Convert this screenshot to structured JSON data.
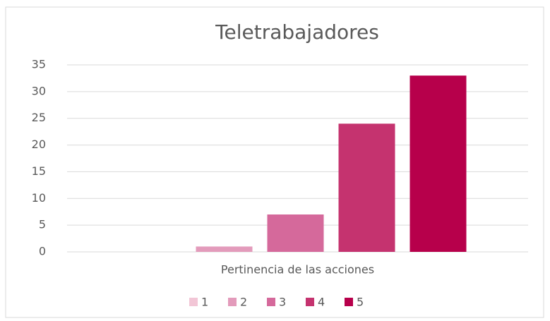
{
  "chart_data": {
    "type": "bar",
    "title": "Teletrabajadores",
    "categories": [
      "Pertinencia de las acciones"
    ],
    "series": [
      {
        "name": "1",
        "color": "#f2c6d6",
        "values": [
          0
        ]
      },
      {
        "name": "2",
        "color": "#e39bbb",
        "values": [
          1
        ]
      },
      {
        "name": "3",
        "color": "#d5699b",
        "values": [
          7
        ]
      },
      {
        "name": "4",
        "color": "#c5336f",
        "values": [
          24
        ]
      },
      {
        "name": "5",
        "color": "#b7004b",
        "values": [
          33
        ]
      }
    ],
    "ylim": [
      0,
      35
    ],
    "yticks": [
      0,
      5,
      10,
      15,
      20,
      25,
      30,
      35
    ],
    "grid": true,
    "legend": "bottom"
  }
}
